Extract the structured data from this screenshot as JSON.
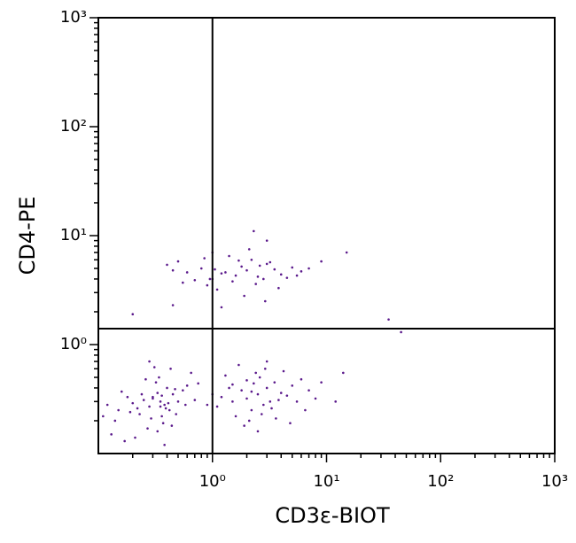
{
  "chart_data": {
    "type": "scatter",
    "xlabel": "CD3ε-BIOT",
    "ylabel": "CD4-PE",
    "log_x": true,
    "log_y": true,
    "xlim": [
      0.1,
      1000
    ],
    "ylim": [
      0.1,
      1000
    ],
    "xticks": [
      {
        "value": 1,
        "label": "10⁰"
      },
      {
        "value": 10,
        "label": "10¹"
      },
      {
        "value": 100,
        "label": "10²"
      },
      {
        "value": 1000,
        "label": "10³"
      }
    ],
    "yticks": [
      {
        "value": 1,
        "label": "10⁰"
      },
      {
        "value": 10,
        "label": "10¹"
      },
      {
        "value": 100,
        "label": "10²"
      },
      {
        "value": 1000,
        "label": "10³"
      }
    ],
    "xminorticks": [
      0.2,
      0.3,
      0.4,
      0.5,
      0.6,
      0.7,
      0.8,
      0.9,
      2,
      3,
      4,
      5,
      6,
      7,
      8,
      9,
      20,
      30,
      40,
      50,
      60,
      70,
      80,
      90,
      200,
      300,
      400,
      500,
      600,
      700,
      800,
      900
    ],
    "yminorticks": [
      0.2,
      0.3,
      0.4,
      0.5,
      0.6,
      0.7,
      0.8,
      0.9,
      2,
      3,
      4,
      5,
      6,
      7,
      8,
      9,
      20,
      30,
      40,
      50,
      60,
      70,
      80,
      90,
      200,
      300,
      400,
      500,
      600,
      700,
      800,
      900
    ],
    "gates": {
      "x": 1,
      "y": 1.4
    },
    "color": "#5b1a8c",
    "x": [
      0.35,
      0.38,
      0.3,
      0.42,
      0.33,
      0.28,
      0.4,
      0.36,
      0.25,
      0.45,
      0.32,
      0.37,
      0.22,
      0.5,
      0.29,
      0.34,
      0.41,
      0.19,
      0.55,
      0.27,
      0.15,
      0.12,
      0.14,
      0.18,
      0.13,
      0.21,
      0.6,
      0.7,
      0.65,
      0.31,
      0.39,
      0.44,
      0.24,
      0.17,
      0.48,
      0.36,
      0.26,
      0.33,
      0.11,
      0.16,
      0.58,
      0.75,
      0.43,
      0.3,
      0.35,
      0.2,
      0.23,
      0.47,
      0.38,
      0.28,
      2.5,
      2,
      3,
      1.5,
      2.8,
      3.5,
      1.8,
      2.2,
      4,
      1.2,
      2.6,
      3.2,
      1.6,
      5,
      2.4,
      1.1,
      3.8,
      2.1,
      6,
      1.4,
      2.9,
      4.5,
      1.9,
      2.3,
      3.3,
      7,
      1.3,
      2.7,
      5.5,
      1.7,
      3.6,
      2,
      4.2,
      1,
      2.5,
      8,
      3,
      1.5,
      6.5,
      2.2,
      12,
      9,
      14,
      0.9,
      4.8,
      1,
      1.2,
      0.8,
      2,
      2.5,
      1.5,
      3,
      0.6,
      1.8,
      4,
      0.9,
      2.2,
      3.5,
      0.5,
      1.1,
      5,
      2.8,
      1.4,
      0.7,
      6,
      1.6,
      2.4,
      3.2,
      0.45,
      1,
      4.5,
      1.9,
      2.6,
      0.85,
      7,
      1.3,
      3.8,
      2.1,
      0.55,
      1.7,
      5.5,
      2.9,
      1.05,
      0.4,
      9,
      15,
      2.3,
      3,
      1.2,
      0.95,
      35,
      45,
      0.2,
      0.45
    ],
    "values": [
      0.3,
      0.28,
      0.33,
      0.25,
      0.36,
      0.27,
      0.4,
      0.22,
      0.31,
      0.35,
      0.45,
      0.19,
      0.26,
      0.3,
      0.21,
      0.5,
      0.29,
      0.24,
      0.38,
      0.17,
      0.25,
      0.28,
      0.2,
      0.33,
      0.15,
      0.14,
      0.42,
      0.31,
      0.55,
      0.62,
      0.26,
      0.18,
      0.35,
      0.13,
      0.23,
      0.34,
      0.48,
      0.16,
      0.22,
      0.37,
      0.28,
      0.44,
      0.6,
      0.32,
      0.27,
      0.29,
      0.23,
      0.39,
      0.12,
      0.7,
      0.35,
      0.32,
      0.4,
      0.3,
      0.28,
      0.45,
      0.38,
      0.25,
      0.36,
      0.33,
      0.5,
      0.3,
      0.22,
      0.42,
      0.55,
      0.27,
      0.31,
      0.2,
      0.48,
      0.4,
      0.6,
      0.34,
      0.18,
      0.44,
      0.26,
      0.38,
      0.52,
      0.23,
      0.3,
      0.65,
      0.21,
      0.47,
      0.57,
      0.35,
      0.16,
      0.32,
      0.7,
      0.43,
      0.25,
      0.37,
      0.3,
      0.45,
      0.55,
      0.28,
      0.19,
      4,
      4.5,
      5,
      4.8,
      4.2,
      3.8,
      5.5,
      4.6,
      5.2,
      4.4,
      3.5,
      6,
      4.9,
      5.8,
      3.2,
      5.1,
      4,
      6.5,
      3.9,
      4.7,
      4.3,
      3.6,
      5.7,
      4.8,
      7,
      4.1,
      2.8,
      5.3,
      6.2,
      5,
      4.6,
      3.3,
      7.5,
      3.7,
      5.9,
      4.3,
      2.5,
      4.9,
      5.4,
      5.8,
      7,
      11,
      9,
      2.2,
      4,
      1.7,
      1.3,
      1.9,
      2.3
    ]
  }
}
